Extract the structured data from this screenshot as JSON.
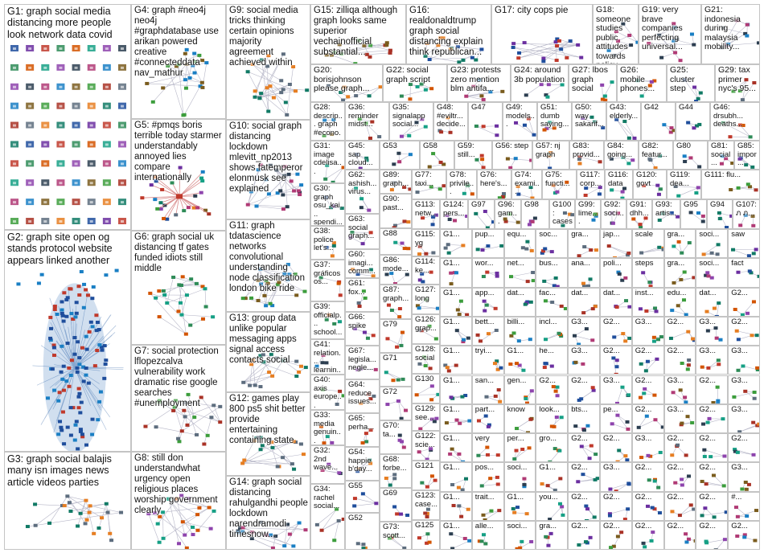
{
  "groups": [
    {
      "id": "G1",
      "text": "G1: graph social media distancing more people look network data covid"
    },
    {
      "id": "G2",
      "text": "G2: graph site open og stands protocol website appears linked another"
    },
    {
      "id": "G3",
      "text": "G3: graph social balajis many isn images news article videos parties"
    },
    {
      "id": "G4",
      "text": "G4: graph #neo4j neo4j #graphdatabase use arikan powered creative #connecteddata nav_mathur"
    },
    {
      "id": "G5",
      "text": "G5: #pmqs boris terrible today starmer understandably annoyed lies compare internationally"
    },
    {
      "id": "G6",
      "text": "G6: graph social uk distancing tf gates funded idiots still middle"
    },
    {
      "id": "G7",
      "text": "G7: social protection lflopezcalva vulnerability work dramatic rise google searches #unemployment"
    },
    {
      "id": "G8",
      "text": "G8: still don understandwhat urgency open religious places worship government clearly"
    },
    {
      "id": "G9",
      "text": "G9: social media tricks thinking certain opinions majority agreement achieved within"
    },
    {
      "id": "G10",
      "text": "G10: social graph distancing lockdown mlevitt_np2013 shows fatemperor elonmusk see explained"
    },
    {
      "id": "G11",
      "text": "G11: graph tdatascience networks convolutional understanding node classification london bike ride"
    },
    {
      "id": "G12",
      "text": "G12: games play 800 ps5 shit better provide entertaining containing state"
    },
    {
      "id": "G13",
      "text": "G13: group data unlike popular messaging apps signal access contacts social"
    },
    {
      "id": "G14",
      "text": "G14: graph social distancing rahulgandhi people lockdown narendramodi timesnow..."
    },
    {
      "id": "G15",
      "text": "G15: zilliqa although graph looks same superior vechainofficial substantial..."
    },
    {
      "id": "G16",
      "text": "G16: realdonaldtrump graph social distancing explain think republican..."
    },
    {
      "id": "G17",
      "text": "G17: city cops pie"
    },
    {
      "id": "G18",
      "text": "G18: someone studies public attitudes towards policy change..."
    },
    {
      "id": "G19",
      "text": "G19: very brave companies perfecting universal..."
    },
    {
      "id": "G20",
      "text": "G20: borisjohnson please graph..."
    },
    {
      "id": "G21",
      "text": "G21: indonesia during malaysia mobility..."
    },
    {
      "id": "G22",
      "text": "G22: social graph script"
    },
    {
      "id": "G23",
      "text": "G23: protests zero mention blm antifa..."
    },
    {
      "id": "G24",
      "text": "G24: around 3b population"
    },
    {
      "id": "G25",
      "text": "G25: cluster step"
    },
    {
      "id": "G26",
      "text": "G26: mobile phones..."
    },
    {
      "id": "G27",
      "text": "G27: lbos graph social"
    },
    {
      "id": "G28",
      "text": "G28: descrip... graph #econo..."
    },
    {
      "id": "G29",
      "text": "G29: tax primer nyc's 95..."
    },
    {
      "id": "G30",
      "text": "G30: graph osu_kai... spendi..."
    },
    {
      "id": "G31",
      "text": "G31: image cdelisa..."
    },
    {
      "id": "G32",
      "text": "G32: 2nd wave..."
    },
    {
      "id": "G33",
      "text": "G33: media genuin..."
    },
    {
      "id": "G34",
      "text": "G34: rachel social..."
    },
    {
      "id": "G35",
      "text": "G35: signalapp social..."
    },
    {
      "id": "G36",
      "text": "G36: reminder midst..."
    },
    {
      "id": "G37",
      "text": "G37: gráficos os..."
    },
    {
      "id": "G38",
      "text": "G38: police let's..."
    },
    {
      "id": "G39",
      "text": "G39: officialp... school..."
    },
    {
      "id": "G40",
      "text": "G40: axis europe..."
    },
    {
      "id": "G41",
      "text": "G41: relation... learnin..."
    },
    {
      "id": "G42",
      "text": "G42"
    },
    {
      "id": "G43",
      "text": "G43: elderly..."
    },
    {
      "id": "G44",
      "text": "G44"
    },
    {
      "id": "G45",
      "text": "G45: sap cloud..."
    },
    {
      "id": "G46",
      "text": "G46: drsubh... deaths..."
    },
    {
      "id": "G47",
      "text": "G47"
    },
    {
      "id": "G48",
      "text": "G48: #eviltr... decide..."
    },
    {
      "id": "G49",
      "text": "G49: models..."
    },
    {
      "id": "G50",
      "text": "G50: way sakarif..."
    },
    {
      "id": "G51",
      "text": "G51: dumb saying..."
    },
    {
      "id": "G52",
      "text": "G52"
    },
    {
      "id": "G53",
      "text": "G53"
    },
    {
      "id": "G54",
      "text": "G54: happie b'day..."
    },
    {
      "id": "G55",
      "text": "G55"
    },
    {
      "id": "G56",
      "text": "G56: step"
    },
    {
      "id": "G57",
      "text": "G57: nj graph"
    },
    {
      "id": "G58",
      "text": "G58"
    },
    {
      "id": "G59",
      "text": "G59: still..."
    },
    {
      "id": "G60",
      "text": "G60: imagi... comm..."
    },
    {
      "id": "G61",
      "text": "G61: fox..."
    },
    {
      "id": "G62",
      "text": "G62: ashish... virus..."
    },
    {
      "id": "G63",
      "text": "G63: social graph..."
    },
    {
      "id": "G64",
      "text": "G64: reduce issues..."
    },
    {
      "id": "G65",
      "text": "G65: perha..."
    },
    {
      "id": "G66",
      "text": "G66: spike"
    },
    {
      "id": "G67",
      "text": "G67: legisla... negle..."
    },
    {
      "id": "G68",
      "text": "G68: forbe..."
    },
    {
      "id": "G69",
      "text": "G69"
    },
    {
      "id": "G70",
      "text": "G70: ta..."
    },
    {
      "id": "G71",
      "text": "G71"
    },
    {
      "id": "G72",
      "text": "G72"
    },
    {
      "id": "G73",
      "text": "G73: scott..."
    },
    {
      "id": "G74",
      "text": "G74: exami..."
    },
    {
      "id": "G75",
      "text": "G75: functi..."
    },
    {
      "id": "G76",
      "text": "G76: here's..."
    },
    {
      "id": "G77",
      "text": "G77: taxi..."
    },
    {
      "id": "G78",
      "text": "G78: privile..."
    },
    {
      "id": "G79",
      "text": "G79"
    },
    {
      "id": "G80",
      "text": "G80"
    },
    {
      "id": "G81",
      "text": "G81: social..."
    },
    {
      "id": "G82",
      "text": "G82: featur..."
    },
    {
      "id": "G83",
      "text": "G83: provid..."
    },
    {
      "id": "G84",
      "text": "G84: going..."
    },
    {
      "id": "G85",
      "text": "G85: impor..."
    },
    {
      "id": "G86",
      "text": "G86: mode..."
    },
    {
      "id": "G87",
      "text": "G87: graph..."
    },
    {
      "id": "G88",
      "text": "G88"
    },
    {
      "id": "G89",
      "text": "G89: graph..."
    },
    {
      "id": "G90",
      "text": "G90: past..."
    },
    {
      "id": "G91",
      "text": "G91: dhh..."
    },
    {
      "id": "G92",
      "text": "G92: soci..."
    },
    {
      "id": "G93",
      "text": "G93: artis..."
    },
    {
      "id": "G94",
      "text": "G94"
    },
    {
      "id": "G95",
      "text": "G95"
    },
    {
      "id": "G96",
      "text": "G96: gam..."
    },
    {
      "id": "G97",
      "text": "G97"
    },
    {
      "id": "G98",
      "text": "G98"
    },
    {
      "id": "G99",
      "text": "G99: lime..."
    },
    {
      "id": "G100",
      "text": "G100: cases"
    },
    {
      "id": "G107",
      "text": "G107: ภ ภ..."
    },
    {
      "id": "G111",
      "text": "G111: flu..."
    },
    {
      "id": "G113",
      "text": "G113: netw..."
    },
    {
      "id": "G114",
      "text": "G114: ke..."
    },
    {
      "id": "G115",
      "text": "G115: yg"
    },
    {
      "id": "G116",
      "text": "G116: data"
    },
    {
      "id": "G117",
      "text": "G117: corp..."
    },
    {
      "id": "G119",
      "text": "G119: dea..."
    },
    {
      "id": "G120",
      "text": "G120: govt"
    },
    {
      "id": "G121",
      "text": "G121"
    },
    {
      "id": "G122",
      "text": "G122: scie..."
    },
    {
      "id": "G123",
      "text": "G123: case..."
    },
    {
      "id": "G124",
      "text": "G124: pers..."
    },
    {
      "id": "G125",
      "text": "G125"
    },
    {
      "id": "G126",
      "text": "G126: grap..."
    },
    {
      "id": "G127",
      "text": "G127: long"
    },
    {
      "id": "G128",
      "text": "G128: social"
    },
    {
      "id": "G129",
      "text": "G129: see..."
    },
    {
      "id": "G130",
      "text": "G130"
    }
  ],
  "mini_labels": [
    "G1...",
    "pup...",
    "equ...",
    "soc...",
    "gra...",
    "jap...",
    "scale",
    "gra...",
    "soci...",
    "saw",
    "G1...",
    "wor...",
    "net...",
    "bus...",
    "ana...",
    "poli...",
    "steps",
    "gra...",
    "soci...",
    "fact",
    "G1...",
    "app...",
    "dat...",
    "fac...",
    "dat...",
    "dat...",
    "inst...",
    "edu...",
    "dat...",
    "G2...",
    "G1...",
    "bett...",
    "billi...",
    "incl...",
    "G3...",
    "G2...",
    "G3...",
    "G2...",
    "G3...",
    "G2...",
    "G1...",
    "tryi...",
    "G1...",
    "he...",
    "G3...",
    "G2...",
    "G2...",
    "G2...",
    "G3...",
    "G3...",
    "G1...",
    "san...",
    "gen...",
    "G2...",
    "G2...",
    "G3...",
    "G2...",
    "G3...",
    "G2...",
    "G3...",
    "G1...",
    "part...",
    "know",
    "look...",
    "bts...",
    "pe...",
    "G2...",
    "G3...",
    "G2...",
    "G3...",
    "G1...",
    "very",
    "per...",
    "gro...",
    "G2...",
    "G2...",
    "G3...",
    "G2...",
    "G2...",
    "G2...",
    "G1...",
    "pos...",
    "soci...",
    "G1...",
    "G2...",
    "G3...",
    "G2...",
    "G2...",
    "G2...",
    "G3...",
    "G1...",
    "trait...",
    "G1...",
    "you...",
    "G2...",
    "G2...",
    "G2...",
    "G2...",
    "G2...",
    "#...",
    "G1...",
    "alle...",
    "soci...",
    "gra...",
    "G2...",
    "G2...",
    "G2...",
    "G2...",
    "G2...",
    "G2..."
  ]
}
